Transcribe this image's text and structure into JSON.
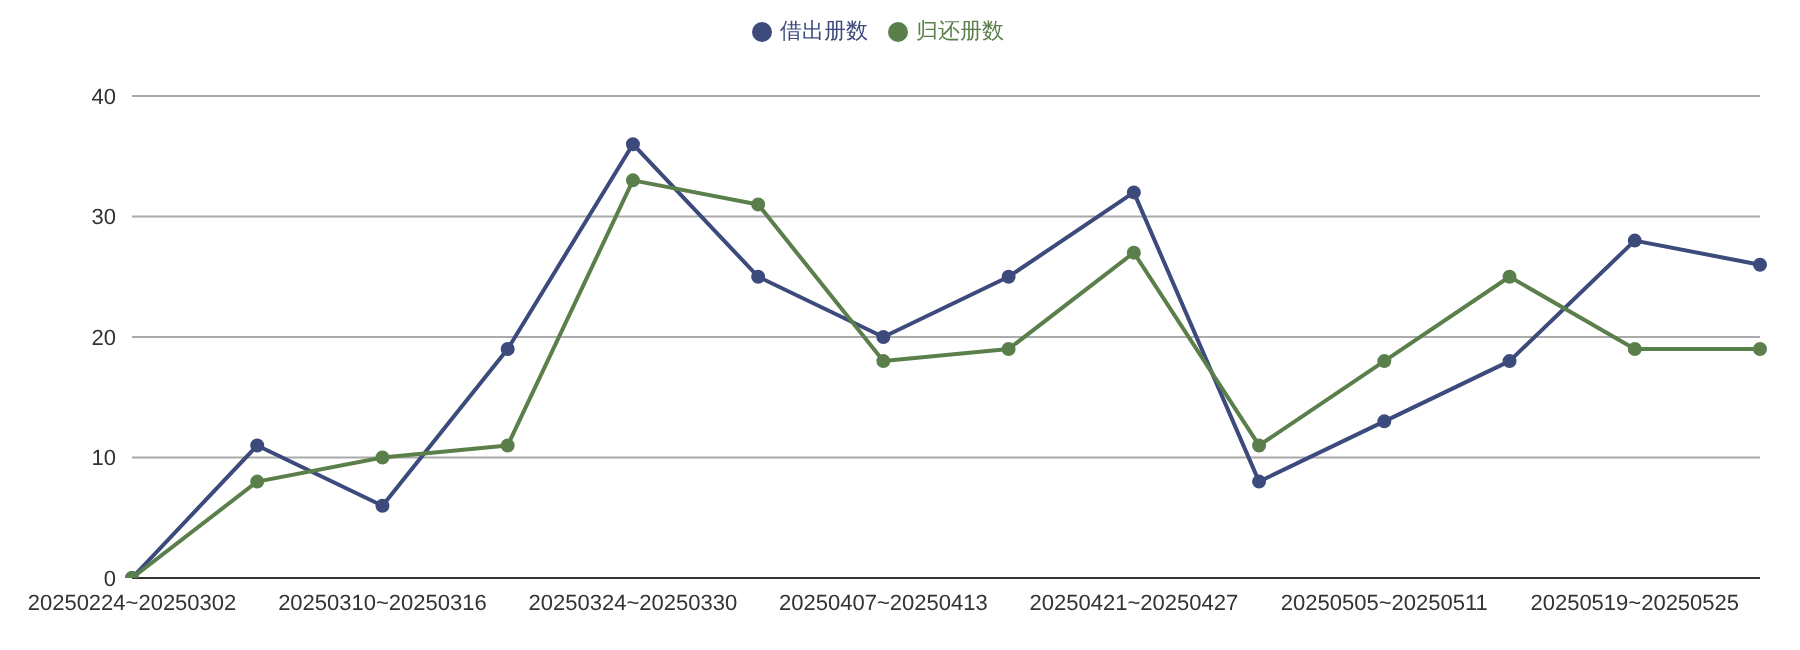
{
  "chart_data": {
    "type": "line",
    "categories": [
      "20250224~20250302",
      null,
      "20250310~20250316",
      null,
      "20250324~20250330",
      null,
      "20250407~20250413",
      null,
      "20250421~20250427",
      null,
      "20250505~20250511",
      null,
      "20250519~20250525",
      null
    ],
    "series": [
      {
        "name": "借出册数",
        "color": "#3c4a7c",
        "values": [
          0,
          11,
          6,
          19,
          36,
          25,
          20,
          25,
          32,
          8,
          13,
          18,
          28,
          26
        ]
      },
      {
        "name": "归还册数",
        "color": "#5b7f4b",
        "values": [
          0,
          8,
          10,
          11,
          33,
          31,
          18,
          19,
          27,
          11,
          18,
          25,
          19,
          19
        ]
      }
    ],
    "ylim": [
      0,
      40
    ],
    "yticks": [
      0,
      10,
      20,
      30,
      40
    ],
    "grid": "y",
    "legend": "top",
    "marker": "circle",
    "line_style": "solid"
  }
}
